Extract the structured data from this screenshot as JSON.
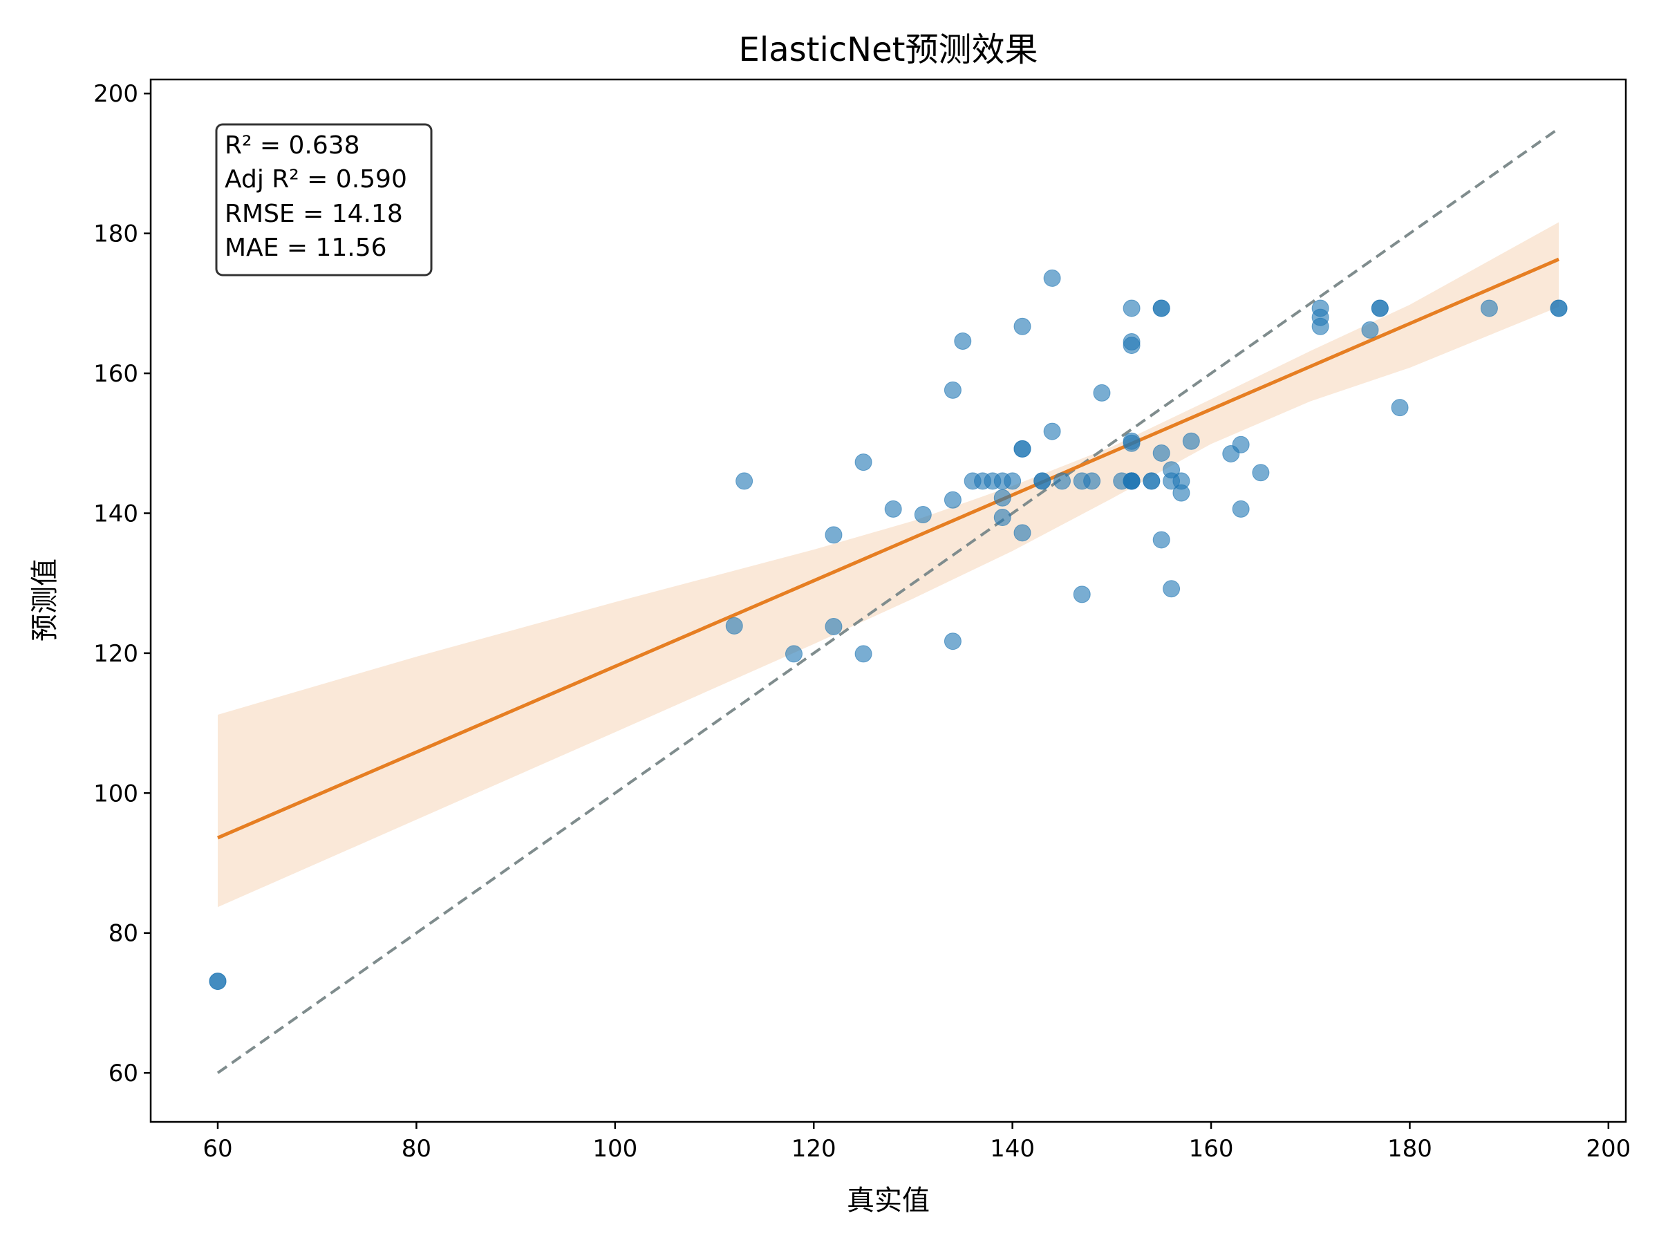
{
  "chart_data": {
    "type": "scatter",
    "title": "ElasticNet预测效果",
    "xlabel": "真实值",
    "ylabel": "预测值",
    "xlim": [
      53.25,
      201.75
    ],
    "ylim": [
      53.0,
      202.0
    ],
    "xticks": [
      60,
      80,
      100,
      120,
      140,
      160,
      180,
      200
    ],
    "yticks": [
      60,
      80,
      100,
      120,
      140,
      160,
      180,
      200
    ],
    "grid": false,
    "colors": {
      "points": "#1f77b4",
      "fit_line": "#e67e22",
      "confidence_band": "#f6d5b8",
      "identity_line": "#7f8c8d"
    },
    "stats_box": {
      "position": "top-left",
      "lines": [
        "R² = 0.638",
        "Adj R² = 0.590",
        "RMSE = 14.18",
        "MAE = 11.56"
      ]
    },
    "identity_line": {
      "from": [
        60,
        60
      ],
      "to": [
        195,
        195
      ],
      "style": "dashed"
    },
    "fit_line": {
      "from": [
        60,
        93.6
      ],
      "to": [
        195,
        176.3
      ]
    },
    "confidence_band": {
      "x": [
        60,
        80,
        100,
        120,
        130,
        140,
        150,
        160,
        170,
        180,
        195
      ],
      "upper": [
        111.2,
        119.5,
        127.3,
        134.8,
        138.9,
        143.9,
        149.5,
        156.3,
        163.2,
        169.8,
        181.6
      ],
      "lower": [
        83.7,
        96.2,
        108.7,
        121.3,
        127.8,
        134.6,
        142.1,
        149.9,
        156.0,
        160.8,
        169.5
      ]
    },
    "points": {
      "x": [
        60,
        60,
        112,
        113,
        118,
        122,
        122,
        125,
        125,
        128,
        131,
        134,
        134,
        134,
        135,
        136,
        137,
        138,
        139,
        139,
        139,
        140,
        141,
        141,
        141,
        141,
        143,
        143,
        144,
        144,
        145,
        147,
        147,
        148,
        149,
        151,
        152,
        152,
        152,
        152,
        152,
        152,
        152,
        152,
        152,
        154,
        154,
        155,
        155,
        155,
        155,
        156,
        156,
        156,
        157,
        157,
        158,
        162,
        163,
        163,
        165,
        171,
        171,
        171,
        176,
        177,
        177,
        179,
        188,
        195,
        195
      ],
      "y": [
        73.1,
        73.1,
        123.9,
        144.6,
        119.9,
        123.8,
        136.9,
        147.3,
        119.9,
        140.6,
        139.8,
        141.9,
        157.6,
        121.7,
        164.6,
        144.6,
        144.6,
        144.6,
        144.6,
        142.2,
        139.4,
        144.6,
        166.7,
        149.2,
        149.2,
        137.2,
        144.6,
        144.6,
        173.6,
        151.7,
        144.6,
        144.6,
        128.4,
        144.6,
        157.2,
        144.6,
        169.3,
        164.5,
        164.0,
        150.3,
        150.0,
        144.6,
        144.6,
        144.6,
        144.6,
        144.6,
        144.6,
        169.3,
        169.3,
        148.6,
        136.2,
        146.2,
        144.6,
        129.2,
        144.6,
        142.9,
        150.3,
        148.5,
        149.8,
        140.6,
        145.8,
        169.3,
        168.0,
        166.7,
        166.2,
        169.3,
        169.3,
        155.1,
        169.3,
        169.3,
        169.3
      ]
    }
  }
}
